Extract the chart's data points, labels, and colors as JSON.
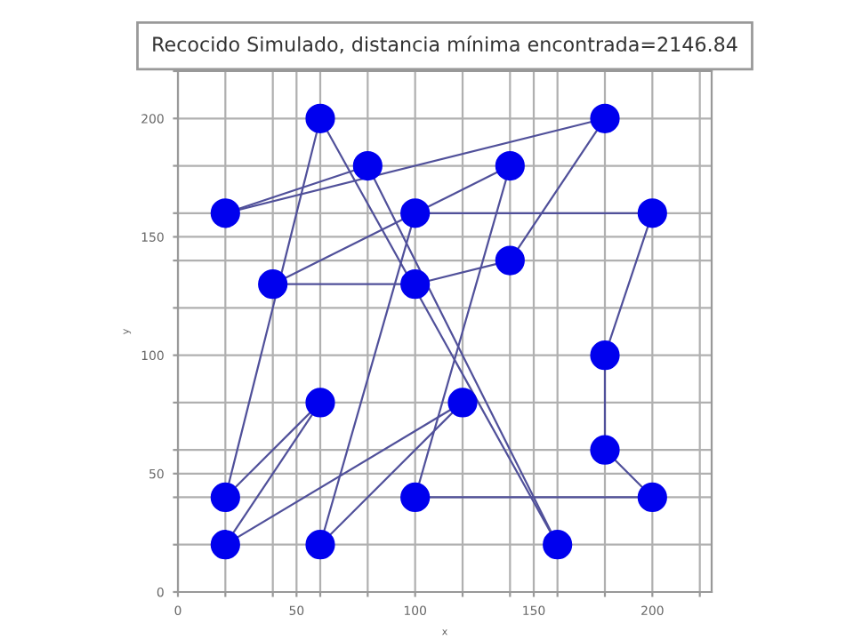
{
  "chart_data": {
    "type": "line",
    "title": "Recocido Simulado, distancia mínima encontrada=2146.84",
    "xlabel": "x",
    "ylabel": "y",
    "series": [
      {
        "color": "#50509a",
        "x": [
          20,
          180
        ],
        "values": [
          160,
          200
        ]
      },
      {
        "color": "#50509a",
        "x": [
          140,
          180
        ],
        "values": [
          140,
          200
        ]
      },
      {
        "color": "#50509a",
        "x": [
          100,
          140
        ],
        "values": [
          130,
          140
        ]
      },
      {
        "color": "#50509a",
        "x": [
          40,
          100
        ],
        "values": [
          130,
          130
        ]
      },
      {
        "color": "#50509a",
        "x": [
          40,
          140
        ],
        "values": [
          130,
          180
        ]
      },
      {
        "color": "#50509a",
        "x": [
          100,
          140
        ],
        "values": [
          40,
          180
        ]
      },
      {
        "color": "#50509a",
        "x": [
          100,
          200
        ],
        "values": [
          40,
          40
        ]
      },
      {
        "color": "#50509a",
        "x": [
          180,
          200
        ],
        "values": [
          60,
          40
        ]
      },
      {
        "color": "#50509a",
        "x": [
          180,
          180
        ],
        "values": [
          60,
          100
        ]
      },
      {
        "color": "#50509a",
        "x": [
          180,
          200
        ],
        "values": [
          100,
          160
        ]
      },
      {
        "color": "#50509a",
        "x": [
          100,
          200
        ],
        "values": [
          160,
          160
        ]
      },
      {
        "color": "#50509a",
        "x": [
          60,
          100
        ],
        "values": [
          20,
          160
        ]
      },
      {
        "color": "#50509a",
        "x": [
          60,
          120
        ],
        "values": [
          20,
          80
        ]
      },
      {
        "color": "#50509a",
        "x": [
          20,
          120
        ],
        "values": [
          20,
          80
        ]
      },
      {
        "color": "#50509a",
        "x": [
          20,
          60
        ],
        "values": [
          20,
          80
        ]
      },
      {
        "color": "#50509a",
        "x": [
          20,
          60
        ],
        "values": [
          40,
          80
        ]
      },
      {
        "color": "#50509a",
        "x": [
          20,
          60
        ],
        "values": [
          40,
          200
        ]
      },
      {
        "color": "#50509a",
        "x": [
          60,
          160
        ],
        "values": [
          200,
          20
        ]
      },
      {
        "color": "#50509a",
        "x": [
          80,
          160
        ],
        "values": [
          180,
          20
        ]
      },
      {
        "color": "#50509a",
        "x": [
          20,
          80
        ],
        "values": [
          160,
          180
        ]
      },
      {
        "type": "scatter",
        "color": "#0000ee",
        "marker": "circle",
        "x": [
          20,
          180,
          140,
          100,
          40,
          140,
          100,
          200,
          180,
          180,
          200,
          100,
          60,
          120,
          20,
          60,
          20,
          60,
          160,
          80
        ],
        "values": [
          160,
          200,
          140,
          130,
          130,
          180,
          40,
          40,
          60,
          100,
          160,
          160,
          20,
          80,
          20,
          80,
          40,
          200,
          20,
          180
        ]
      }
    ],
    "line_style": "solid",
    "grid": true,
    "xlim": [
      0,
      225
    ],
    "ylim": [
      0,
      220
    ],
    "xticks": [
      0,
      {
        "value": 20,
        "label": null
      },
      {
        "value": 40,
        "label": null
      },
      50,
      {
        "value": 60,
        "label": null
      },
      {
        "value": 80,
        "label": null
      },
      100,
      {
        "value": 120,
        "label": null
      },
      {
        "value": 140,
        "label": null
      },
      150,
      {
        "value": 160,
        "label": null
      },
      {
        "value": 180,
        "label": null
      },
      200,
      {
        "value": 220,
        "label": null
      }
    ],
    "yticks": [
      0,
      {
        "value": 20,
        "label": null
      },
      {
        "value": 40,
        "label": null
      },
      50,
      {
        "value": 60,
        "label": null
      },
      {
        "value": 80,
        "label": null
      },
      100,
      {
        "value": 120,
        "label": null
      },
      {
        "value": 140,
        "label": null
      },
      150,
      {
        "value": 160,
        "label": null
      },
      {
        "value": 180,
        "label": null
      },
      200,
      {
        "value": 220,
        "label": null
      }
    ]
  }
}
